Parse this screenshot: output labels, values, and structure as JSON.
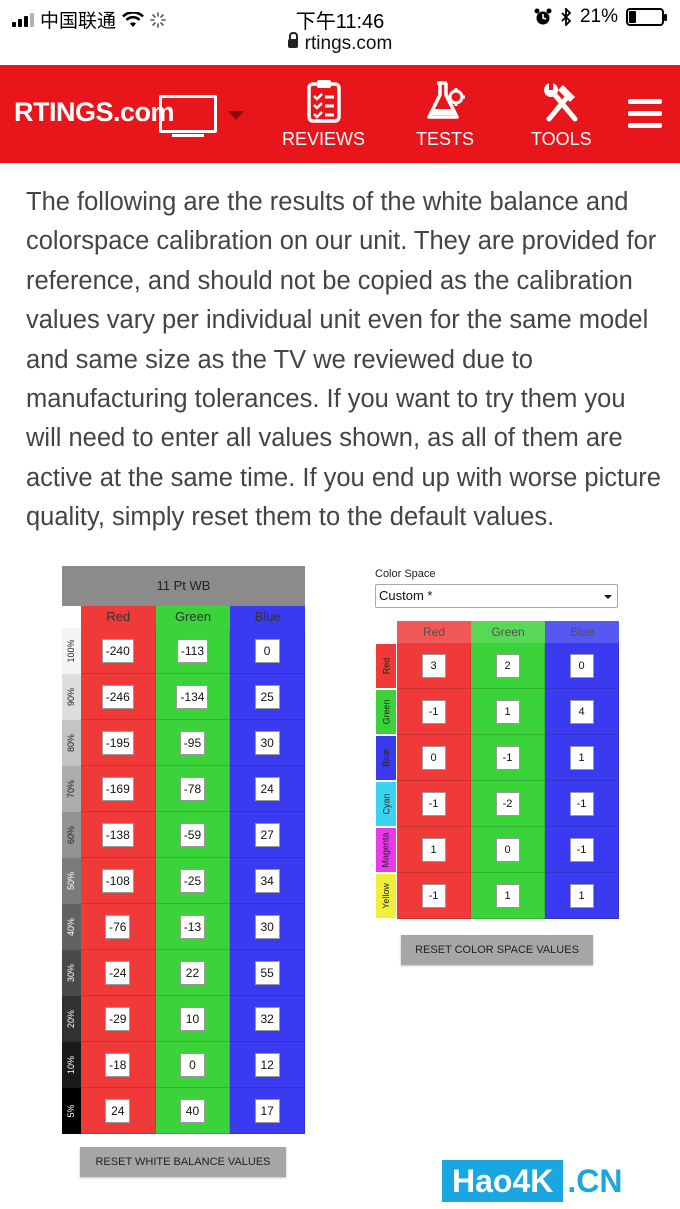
{
  "status_bar": {
    "carrier": "中国联通",
    "time": "下午11:46",
    "battery_percent": "21%",
    "battery_level": 0.21
  },
  "browser": {
    "url": "rtings.com"
  },
  "header": {
    "logo": "RTINGS.com",
    "nav": [
      {
        "label": "REVIEWS",
        "icon": "clipboard-checklist-icon"
      },
      {
        "label": "TESTS",
        "icon": "flask-gear-icon"
      },
      {
        "label": "TOOLS",
        "icon": "wrench-hammer-icon"
      }
    ],
    "brand_color": "#e8161b"
  },
  "intro_text": "The following are the results of the white balance and colorspace calibration on our unit. They are provided for reference, and should not be copied as the calibration values vary per individual unit even for the same model and same size as the TV we reviewed due to manufacturing tolerances. If you want to try them you will need to enter all values shown, as all of them are active at the same time. If you end up with worse picture quality, simply reset them to the default values.",
  "white_balance": {
    "title": "11 Pt WB",
    "columns": [
      "Red",
      "Green",
      "Blue"
    ],
    "rows": [
      {
        "label": "100%",
        "values": [
          "-240",
          "-113",
          "0"
        ]
      },
      {
        "label": "90%",
        "values": [
          "-246",
          "-134",
          "25"
        ]
      },
      {
        "label": "80%",
        "values": [
          "-195",
          "-95",
          "30"
        ]
      },
      {
        "label": "70%",
        "values": [
          "-169",
          "-78",
          "24"
        ]
      },
      {
        "label": "60%",
        "values": [
          "-138",
          "-59",
          "27"
        ]
      },
      {
        "label": "50%",
        "values": [
          "-108",
          "-25",
          "34"
        ]
      },
      {
        "label": "40%",
        "values": [
          "-76",
          "-13",
          "30"
        ]
      },
      {
        "label": "30%",
        "values": [
          "-24",
          "22",
          "55"
        ]
      },
      {
        "label": "20%",
        "values": [
          "-29",
          "10",
          "32"
        ]
      },
      {
        "label": "10%",
        "values": [
          "-18",
          "0",
          "12"
        ]
      },
      {
        "label": "5%",
        "values": [
          "24",
          "40",
          "17"
        ]
      }
    ],
    "reset_label": "RESET WHITE BALANCE VALUES"
  },
  "color_space": {
    "label": "Color Space",
    "selected": "Custom *",
    "columns": [
      "Red",
      "Green",
      "Blue"
    ],
    "rows": [
      {
        "label": "Red",
        "color": "#f03a3a",
        "values": [
          "3",
          "2",
          "0"
        ]
      },
      {
        "label": "Green",
        "color": "#3ad33a",
        "values": [
          "-1",
          "1",
          "4"
        ]
      },
      {
        "label": "Blue",
        "color": "#3a3af0",
        "values": [
          "0",
          "-1",
          "1"
        ]
      },
      {
        "label": "Cyan",
        "color": "#3ad3f0",
        "values": [
          "-1",
          "-2",
          "-1"
        ]
      },
      {
        "label": "Magenta",
        "color": "#e83ae8",
        "values": [
          "1",
          "0",
          "-1"
        ]
      },
      {
        "label": "Yellow",
        "color": "#f0f03a",
        "values": [
          "-1",
          "1",
          "1"
        ]
      }
    ],
    "reset_label": "RESET COLOR SPACE VALUES"
  },
  "watermark": {
    "part1": "Hao4K",
    "part2": ".CN"
  }
}
